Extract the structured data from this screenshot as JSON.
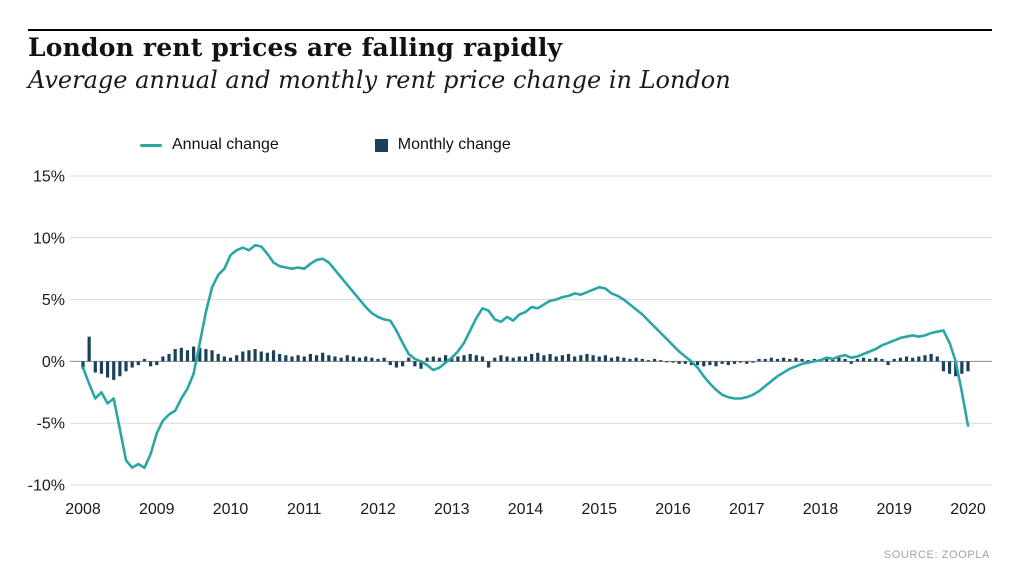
{
  "header": {
    "title": "London rent prices are falling rapidly",
    "subtitle": "Average annual and monthly rent price change in London"
  },
  "legend": [
    {
      "label": "Annual change",
      "type": "line",
      "color": "#2aa6a6"
    },
    {
      "label": "Monthly change",
      "type": "bar",
      "color": "#1b4059"
    }
  ],
  "source": "SOURCE: ZOOPLA",
  "colors": {
    "line": "#2aa6a6",
    "bar": "#1b4059",
    "grid": "#d9d9d9",
    "zero_line": "#8a8a8a",
    "text": "#1a1a1a"
  },
  "chart_data": {
    "type": "line+bar",
    "title": "London rent prices are falling rapidly",
    "subtitle": "Average annual and monthly rent price change in London",
    "x_start_year": 2008,
    "x_months_per_point": 1,
    "x_tick_years": [
      2008,
      2009,
      2010,
      2011,
      2012,
      2013,
      2014,
      2015,
      2016,
      2017,
      2018,
      2019,
      2020
    ],
    "y_tick_labels": [
      "15%",
      "10%",
      "5%",
      "0%",
      "-5%",
      "-10%"
    ],
    "y_tick_values": [
      15,
      10,
      5,
      0,
      -5,
      -10
    ],
    "ylim": [
      -10,
      15
    ],
    "grid": true,
    "legend_position": "top-left",
    "series": [
      {
        "name": "Annual change",
        "type": "line",
        "color": "#2aa6a6",
        "values": [
          -0.5,
          -1.8,
          -3.0,
          -2.5,
          -3.4,
          -3.0,
          -5.5,
          -8.0,
          -8.6,
          -8.3,
          -8.6,
          -7.5,
          -5.8,
          -4.8,
          -4.3,
          -4.0,
          -3.0,
          -2.2,
          -1.0,
          1.5,
          4.0,
          6.0,
          7.0,
          7.5,
          8.6,
          9.0,
          9.2,
          9.0,
          9.4,
          9.3,
          8.7,
          8.0,
          7.7,
          7.6,
          7.5,
          7.6,
          7.5,
          7.9,
          8.2,
          8.3,
          8.0,
          7.4,
          6.8,
          6.2,
          5.6,
          5.0,
          4.4,
          3.9,
          3.6,
          3.4,
          3.3,
          2.5,
          1.5,
          0.6,
          0.2,
          0.0,
          -0.3,
          -0.7,
          -0.5,
          -0.1,
          0.3,
          0.8,
          1.5,
          2.5,
          3.5,
          4.3,
          4.1,
          3.4,
          3.2,
          3.6,
          3.3,
          3.8,
          4.0,
          4.4,
          4.3,
          4.6,
          4.9,
          5.0,
          5.2,
          5.3,
          5.5,
          5.4,
          5.6,
          5.8,
          6.0,
          5.9,
          5.5,
          5.3,
          5.0,
          4.6,
          4.2,
          3.8,
          3.3,
          2.8,
          2.3,
          1.8,
          1.3,
          0.8,
          0.4,
          0.0,
          -0.5,
          -1.2,
          -1.8,
          -2.3,
          -2.7,
          -2.9,
          -3.0,
          -3.0,
          -2.9,
          -2.7,
          -2.4,
          -2.0,
          -1.6,
          -1.2,
          -0.9,
          -0.6,
          -0.4,
          -0.2,
          -0.1,
          0.0,
          0.1,
          0.3,
          0.2,
          0.4,
          0.5,
          0.3,
          0.4,
          0.6,
          0.8,
          1.0,
          1.3,
          1.5,
          1.7,
          1.9,
          2.0,
          2.1,
          2.0,
          2.1,
          2.3,
          2.4,
          2.5,
          1.5,
          0.0,
          -2.5,
          -5.2
        ]
      },
      {
        "name": "Monthly change",
        "type": "bar",
        "color": "#1b4059",
        "values": [
          -0.6,
          2.0,
          -0.9,
          -1.0,
          -1.3,
          -1.5,
          -1.2,
          -0.8,
          -0.5,
          -0.3,
          0.2,
          -0.4,
          -0.3,
          0.4,
          0.6,
          1.0,
          1.1,
          0.9,
          1.2,
          1.1,
          1.0,
          0.9,
          0.6,
          0.4,
          0.3,
          0.5,
          0.8,
          0.9,
          1.0,
          0.8,
          0.7,
          0.9,
          0.6,
          0.5,
          0.4,
          0.5,
          0.4,
          0.6,
          0.5,
          0.7,
          0.5,
          0.4,
          0.3,
          0.5,
          0.4,
          0.3,
          0.4,
          0.3,
          0.2,
          0.3,
          -0.3,
          -0.5,
          -0.4,
          0.3,
          -0.4,
          -0.6,
          0.3,
          0.4,
          0.3,
          0.5,
          0.3,
          0.4,
          0.5,
          0.6,
          0.5,
          0.4,
          -0.5,
          0.3,
          0.5,
          0.4,
          0.3,
          0.4,
          0.4,
          0.6,
          0.7,
          0.5,
          0.6,
          0.4,
          0.5,
          0.6,
          0.4,
          0.5,
          0.6,
          0.5,
          0.4,
          0.5,
          0.3,
          0.4,
          0.3,
          0.2,
          0.3,
          0.2,
          0.1,
          0.2,
          0.1,
          0.0,
          -0.1,
          -0.2,
          -0.2,
          -0.3,
          -0.3,
          -0.4,
          -0.3,
          -0.4,
          -0.2,
          -0.3,
          -0.2,
          -0.1,
          -0.2,
          -0.1,
          0.2,
          0.2,
          0.3,
          0.2,
          0.3,
          0.2,
          0.3,
          0.2,
          0.1,
          0.2,
          0.1,
          0.3,
          0.2,
          0.3,
          0.2,
          -0.2,
          0.2,
          0.3,
          0.2,
          0.3,
          0.2,
          -0.3,
          0.2,
          0.3,
          0.4,
          0.3,
          0.4,
          0.5,
          0.6,
          0.4,
          -0.8,
          -1.0,
          -1.2,
          -1.0,
          -0.8
        ]
      }
    ]
  }
}
